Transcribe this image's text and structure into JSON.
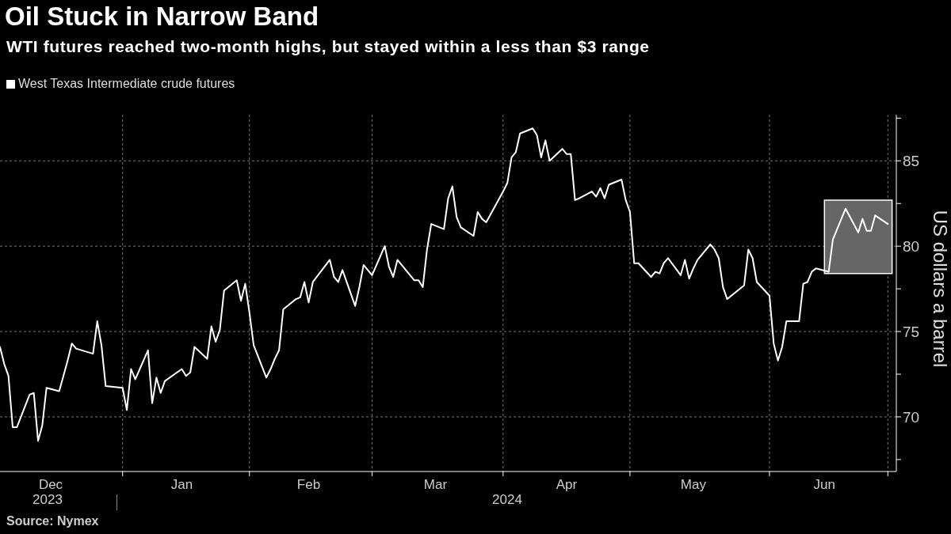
{
  "chart_data": {
    "type": "line",
    "title": "Oil Stuck in Narrow Band",
    "subtitle": "WTI futures reached two-month highs, but stayed within a less than $3 range",
    "ylabel": "US dollars a barrel",
    "annotations": [
      "2023",
      "2024",
      "Source: Nymex"
    ],
    "x": [
      "2023-12-04",
      "2023-12-05",
      "2023-12-06",
      "2023-12-07",
      "2023-12-08",
      "2023-12-11",
      "2023-12-12",
      "2023-12-13",
      "2023-12-14",
      "2023-12-15",
      "2023-12-18",
      "2023-12-19",
      "2023-12-20",
      "2023-12-21",
      "2023-12-22",
      "2023-12-26",
      "2023-12-27",
      "2023-12-28",
      "2023-12-29",
      "2024-01-02",
      "2024-01-03",
      "2024-01-04",
      "2024-01-05",
      "2024-01-08",
      "2024-01-09",
      "2024-01-10",
      "2024-01-11",
      "2024-01-12",
      "2024-01-16",
      "2024-01-17",
      "2024-01-18",
      "2024-01-19",
      "2024-01-22",
      "2024-01-23",
      "2024-01-24",
      "2024-01-25",
      "2024-01-26",
      "2024-01-29",
      "2024-01-30",
      "2024-01-31",
      "2024-02-01",
      "2024-02-02",
      "2024-02-05",
      "2024-02-06",
      "2024-02-07",
      "2024-02-08",
      "2024-02-09",
      "2024-02-12",
      "2024-02-13",
      "2024-02-14",
      "2024-02-15",
      "2024-02-16",
      "2024-02-20",
      "2024-02-21",
      "2024-02-22",
      "2024-02-23",
      "2024-02-26",
      "2024-02-27",
      "2024-02-28",
      "2024-02-29",
      "2024-03-01",
      "2024-03-04",
      "2024-03-05",
      "2024-03-06",
      "2024-03-07",
      "2024-03-08",
      "2024-03-11",
      "2024-03-12",
      "2024-03-13",
      "2024-03-14",
      "2024-03-15",
      "2024-03-18",
      "2024-03-19",
      "2024-03-20",
      "2024-03-21",
      "2024-03-22",
      "2024-03-25",
      "2024-03-26",
      "2024-03-27",
      "2024-03-28",
      "2024-04-01",
      "2024-04-02",
      "2024-04-03",
      "2024-04-04",
      "2024-04-05",
      "2024-04-08",
      "2024-04-09",
      "2024-04-10",
      "2024-04-11",
      "2024-04-12",
      "2024-04-15",
      "2024-04-16",
      "2024-04-17",
      "2024-04-18",
      "2024-04-19",
      "2024-04-22",
      "2024-04-23",
      "2024-04-24",
      "2024-04-25",
      "2024-04-26",
      "2024-04-29",
      "2024-04-30",
      "2024-05-01",
      "2024-05-02",
      "2024-05-03",
      "2024-05-06",
      "2024-05-07",
      "2024-05-08",
      "2024-05-09",
      "2024-05-10",
      "2024-05-13",
      "2024-05-14",
      "2024-05-15",
      "2024-05-16",
      "2024-05-17",
      "2024-05-20",
      "2024-05-21",
      "2024-05-22",
      "2024-05-23",
      "2024-05-24",
      "2024-05-28",
      "2024-05-29",
      "2024-05-30",
      "2024-05-31",
      "2024-06-03",
      "2024-06-04",
      "2024-06-05",
      "2024-06-06",
      "2024-06-07",
      "2024-06-10",
      "2024-06-11",
      "2024-06-12",
      "2024-06-13",
      "2024-06-14",
      "2024-06-17",
      "2024-06-18",
      "2024-06-20",
      "2024-06-21",
      "2024-06-24",
      "2024-06-25",
      "2024-06-26",
      "2024-06-27",
      "2024-06-28",
      "2024-07-01"
    ],
    "series": [
      {
        "name": "West Texas Intermediate crude futures",
        "color": "#ffffff",
        "values": [
          74.1,
          73.1,
          72.4,
          69.4,
          69.4,
          71.3,
          71.4,
          68.6,
          69.5,
          71.7,
          71.5,
          72.4,
          73.3,
          74.3,
          74.0,
          73.7,
          75.6,
          74.2,
          71.8,
          71.7,
          70.4,
          72.8,
          72.2,
          73.9,
          70.8,
          72.3,
          71.4,
          72.1,
          72.8,
          72.4,
          72.6,
          74.1,
          73.4,
          75.3,
          74.4,
          75.1,
          77.4,
          78.0,
          76.8,
          77.8,
          76.1,
          74.2,
          72.3,
          72.8,
          73.4,
          73.9,
          76.3,
          76.9,
          77.0,
          77.9,
          76.7,
          77.9,
          79.2,
          78.2,
          77.9,
          78.6,
          76.5,
          77.6,
          78.9,
          78.6,
          78.3,
          80.0,
          78.8,
          78.2,
          79.2,
          78.9,
          78.0,
          78.0,
          77.6,
          79.8,
          81.3,
          81.0,
          82.8,
          83.5,
          81.7,
          81.1,
          80.6,
          82.0,
          81.6,
          81.4,
          83.2,
          83.7,
          85.2,
          85.5,
          86.6,
          86.9,
          86.5,
          85.2,
          86.2,
          85.0,
          85.7,
          85.4,
          85.4,
          82.7,
          82.8,
          83.2,
          82.9,
          83.4,
          82.8,
          83.6,
          83.9,
          82.7,
          82.0,
          79.0,
          79.0,
          78.2,
          78.5,
          78.4,
          79.0,
          79.3,
          78.3,
          79.2,
          78.1,
          78.7,
          79.2,
          80.1,
          79.8,
          79.3,
          77.6,
          76.9,
          77.7,
          79.8,
          79.3,
          77.9,
          77.1,
          74.3,
          73.3,
          74.1,
          75.6,
          75.6,
          77.8,
          77.9,
          78.5,
          78.7,
          78.5,
          80.4,
          81.6,
          82.2,
          80.8,
          81.6,
          80.9,
          80.9,
          81.8,
          81.3
        ]
      }
    ],
    "xlim": [
      "2023-12-04",
      "2024-07-03"
    ],
    "xticks": [
      {
        "value": "2023-12-16",
        "label": "Dec"
      },
      {
        "value": "2024-01-02",
        "label": null
      },
      {
        "value": "2024-01-16",
        "label": "Jan"
      },
      {
        "value": "2024-02-01",
        "label": null
      },
      {
        "value": "2024-02-15",
        "label": "Feb"
      },
      {
        "value": "2024-03-01",
        "label": null
      },
      {
        "value": "2024-03-16",
        "label": "Mar"
      },
      {
        "value": "2024-04-01",
        "label": null
      },
      {
        "value": "2024-04-16",
        "label": "Apr"
      },
      {
        "value": "2024-05-01",
        "label": null
      },
      {
        "value": "2024-05-16",
        "label": "May"
      },
      {
        "value": "2024-06-03",
        "label": null
      },
      {
        "value": "2024-06-16",
        "label": "Jun"
      },
      {
        "value": "2024-07-01",
        "label": null
      }
    ],
    "ylim": [
      66.8,
      87.7
    ],
    "yticks": [
      {
        "value": 67.5,
        "label": null
      },
      70,
      {
        "value": 72.5,
        "label": null
      },
      75,
      {
        "value": 77.5,
        "label": null
      },
      80,
      {
        "value": 82.5,
        "label": null
      },
      85,
      {
        "value": 87.5,
        "label": null
      }
    ],
    "bands": [
      {
        "axis": "x",
        "from": "2024-06-16",
        "to": "2024-07-02",
        "color": "#666666"
      }
    ],
    "grid": true,
    "legend": "top left",
    "marker": "none",
    "line_style": "solid"
  }
}
